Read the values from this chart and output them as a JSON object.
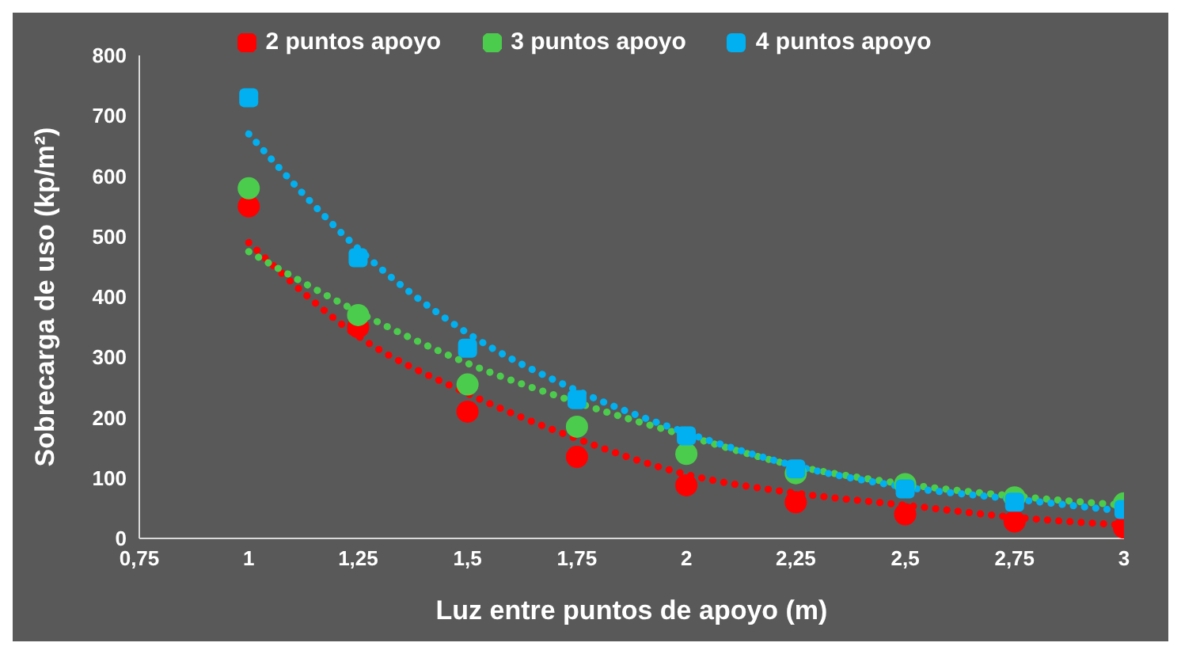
{
  "chart_data": {
    "type": "scatter",
    "xlabel": "Luz entre puntos de apoyo (m)",
    "ylabel": "Sobrecarga de uso (kp/m²)",
    "x": [
      1,
      1.25,
      1.5,
      1.75,
      2,
      2.25,
      2.5,
      2.75,
      3
    ],
    "series": [
      {
        "name": "2 puntos apoyo",
        "color": "#ff0000",
        "marker": "circle",
        "values": [
          550,
          350,
          210,
          135,
          88,
          60,
          40,
          28,
          18
        ]
      },
      {
        "name": "3 puntos apoyo",
        "color": "#4ccc4c",
        "marker": "circle",
        "values": [
          580,
          370,
          255,
          185,
          140,
          108,
          90,
          68,
          58
        ]
      },
      {
        "name": "4 puntos apoyo",
        "color": "#00b0f0",
        "marker": "square",
        "values": [
          730,
          465,
          315,
          230,
          170,
          115,
          82,
          60,
          48
        ]
      },
      {
        "type": "line",
        "color": "#ff0000",
        "marker": "none",
        "line_style": "dotted",
        "values": [
          490,
          335,
          240,
          165,
          106,
          75,
          55,
          35,
          22
        ]
      },
      {
        "type": "line",
        "color": "#4ccc4c",
        "marker": "none",
        "line_style": "dotted",
        "values": [
          475,
          375,
          290,
          225,
          170,
          120,
          90,
          70,
          55
        ]
      },
      {
        "type": "line",
        "color": "#00b0f0",
        "marker": "none",
        "line_style": "dotted",
        "values": [
          670,
          480,
          340,
          245,
          175,
          120,
          85,
          65,
          45
        ]
      }
    ],
    "xlim": [
      0.75,
      3
    ],
    "xticks": [
      {
        "value": 0.75,
        "label": "0,75"
      },
      1,
      {
        "value": 1.25,
        "label": "1,25"
      },
      {
        "value": 1.5,
        "label": "1,5"
      },
      {
        "value": 1.75,
        "label": "1,75"
      },
      2,
      {
        "value": 2.25,
        "label": "2,25"
      },
      {
        "value": 2.5,
        "label": "2,5"
      },
      {
        "value": 2.75,
        "label": "2,75"
      },
      3
    ],
    "ylim": [
      0,
      800
    ],
    "yticks": [
      0,
      100,
      200,
      300,
      400,
      500,
      600,
      700,
      800
    ],
    "grid": false,
    "legend": "top"
  }
}
